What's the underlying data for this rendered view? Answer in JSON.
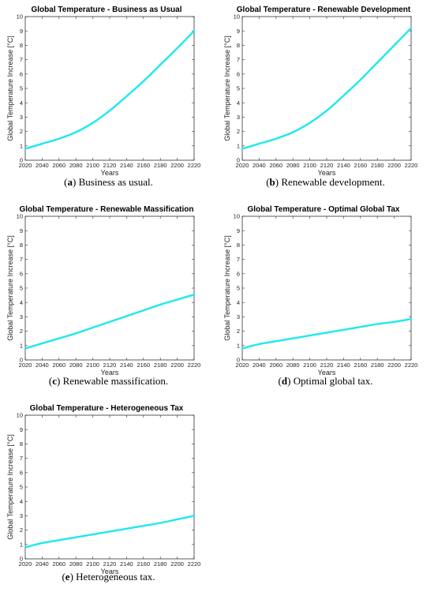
{
  "captions": [
    {
      "letter": "a",
      "text": "Business as usual."
    },
    {
      "letter": "b",
      "text": "Renewable development."
    },
    {
      "letter": "c",
      "text": "Renewable massification."
    },
    {
      "letter": "d",
      "text": "Optimal global tax."
    },
    {
      "letter": "e",
      "text": "Heterogeneous tax."
    }
  ],
  "chart_data": [
    {
      "type": "line",
      "title": "Global Temperature - Business as Usual",
      "xlabel": "Years",
      "ylabel": "Global Temperature Increase [°C]",
      "xlim": [
        2020,
        2220
      ],
      "ylim": [
        0,
        10
      ],
      "xticks": [
        2020,
        2040,
        2060,
        2080,
        2100,
        2120,
        2140,
        2160,
        2180,
        2200,
        2220
      ],
      "yticks": [
        0,
        1,
        2,
        3,
        4,
        5,
        6,
        7,
        8,
        9,
        10
      ],
      "grid": false,
      "color": "#1ee8f0",
      "series": [
        {
          "x": [
            2020,
            2040,
            2060,
            2080,
            2100,
            2120,
            2140,
            2160,
            2180,
            2200,
            2220
          ],
          "y": [
            0.8,
            1.15,
            1.5,
            1.95,
            2.6,
            3.45,
            4.45,
            5.5,
            6.65,
            7.8,
            9.0
          ]
        }
      ]
    },
    {
      "type": "line",
      "title": "Global Temperature - Renewable Development",
      "xlabel": "Years",
      "ylabel": "Global Temperature Increase [°C]",
      "xlim": [
        2020,
        2220
      ],
      "ylim": [
        0,
        10
      ],
      "xticks": [
        2020,
        2040,
        2060,
        2080,
        2100,
        2120,
        2140,
        2160,
        2180,
        2200,
        2220
      ],
      "yticks": [
        0,
        1,
        2,
        3,
        4,
        5,
        6,
        7,
        8,
        9,
        10
      ],
      "grid": false,
      "color": "#1ee8f0",
      "series": [
        {
          "x": [
            2020,
            2040,
            2060,
            2080,
            2100,
            2120,
            2140,
            2160,
            2180,
            2200,
            2220
          ],
          "y": [
            0.8,
            1.15,
            1.5,
            1.95,
            2.6,
            3.45,
            4.5,
            5.6,
            6.8,
            8.0,
            9.2
          ]
        }
      ]
    },
    {
      "type": "line",
      "title": "Global Temperature - Renewable Massification",
      "xlabel": "Years",
      "ylabel": "Global Temperature Increase [°C]",
      "xlim": [
        2020,
        2220
      ],
      "ylim": [
        0,
        10
      ],
      "xticks": [
        2020,
        2040,
        2060,
        2080,
        2100,
        2120,
        2140,
        2160,
        2180,
        2200,
        2220
      ],
      "yticks": [
        0,
        1,
        2,
        3,
        4,
        5,
        6,
        7,
        8,
        9,
        10
      ],
      "grid": false,
      "color": "#1ee8f0",
      "series": [
        {
          "x": [
            2020,
            2040,
            2060,
            2080,
            2100,
            2120,
            2140,
            2160,
            2180,
            2200,
            2220
          ],
          "y": [
            0.8,
            1.15,
            1.5,
            1.85,
            2.25,
            2.65,
            3.05,
            3.45,
            3.85,
            4.2,
            4.55
          ]
        }
      ]
    },
    {
      "type": "line",
      "title": "Global Temperature - Optimal Global Tax",
      "xlabel": "Years",
      "ylabel": "Global Temperature Increase [°C]",
      "xlim": [
        2020,
        2220
      ],
      "ylim": [
        0,
        10
      ],
      "xticks": [
        2020,
        2040,
        2060,
        2080,
        2100,
        2120,
        2140,
        2160,
        2180,
        2200,
        2220
      ],
      "yticks": [
        0,
        1,
        2,
        3,
        4,
        5,
        6,
        7,
        8,
        9,
        10
      ],
      "grid": false,
      "color": "#1ee8f0",
      "series": [
        {
          "x": [
            2020,
            2040,
            2060,
            2080,
            2100,
            2120,
            2140,
            2160,
            2180,
            2200,
            2220
          ],
          "y": [
            0.8,
            1.1,
            1.3,
            1.5,
            1.7,
            1.9,
            2.1,
            2.3,
            2.5,
            2.65,
            2.85
          ]
        }
      ]
    },
    {
      "type": "line",
      "title": "Global Temperature - Heterogeneous Tax",
      "xlabel": "Years",
      "ylabel": "Global Temperature Increase [°C]",
      "xlim": [
        2020,
        2220
      ],
      "ylim": [
        0,
        10
      ],
      "xticks": [
        2020,
        2040,
        2060,
        2080,
        2100,
        2120,
        2140,
        2160,
        2180,
        2200,
        2220
      ],
      "yticks": [
        0,
        1,
        2,
        3,
        4,
        5,
        6,
        7,
        8,
        9,
        10
      ],
      "grid": false,
      "color": "#1ee8f0",
      "series": [
        {
          "x": [
            2020,
            2040,
            2060,
            2080,
            2100,
            2120,
            2140,
            2160,
            2180,
            2200,
            2220
          ],
          "y": [
            0.8,
            1.1,
            1.3,
            1.5,
            1.7,
            1.9,
            2.1,
            2.3,
            2.5,
            2.75,
            3.0
          ]
        }
      ]
    }
  ]
}
